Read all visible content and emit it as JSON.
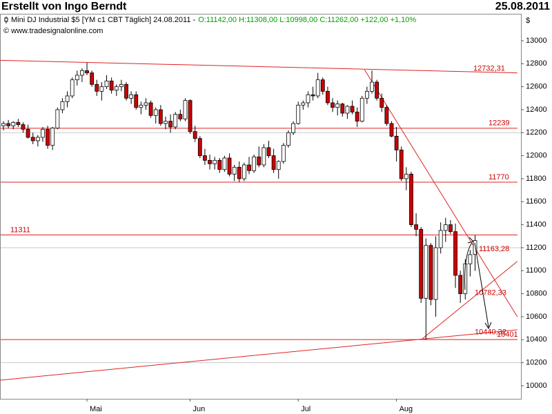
{
  "header": {
    "title": "Erstellt von Ingo Berndt",
    "date": "25.08.2011"
  },
  "chart_data": {
    "type": "candlestick",
    "instrument": "Mini DJ Industrial $5 [YM c1 CBT  Täglich] 24.08.2011 -",
    "quote": "O:11142,00 H:11308,00 L:10998,00 C:11262,00 +122,00 +1,10%",
    "source": "© www.tradesignalonline.com",
    "currency": "$",
    "up_color": "#ffffff",
    "down_color": "#cc0000",
    "line_color": "#dd2222",
    "ylim": [
      9886,
      13234
    ],
    "yticks": [
      10000,
      10200,
      10400,
      10600,
      10800,
      11000,
      11200,
      11400,
      11600,
      11800,
      12000,
      12200,
      12400,
      12600,
      12800,
      13000
    ],
    "grid_lines": [
      10200,
      11200,
      12200
    ],
    "categories": [
      null,
      null,
      null,
      null,
      null,
      null,
      null,
      null,
      null,
      null,
      null,
      null,
      null,
      null,
      null,
      null,
      null,
      "Mai",
      null,
      null,
      null,
      null,
      null,
      null,
      null,
      null,
      null,
      null,
      null,
      null,
      null,
      null,
      null,
      null,
      null,
      null,
      null,
      null,
      "Jun",
      null,
      null,
      null,
      null,
      null,
      null,
      null,
      null,
      null,
      null,
      null,
      null,
      null,
      null,
      null,
      null,
      null,
      null,
      null,
      null,
      null,
      "Jul",
      null,
      null,
      null,
      null,
      null,
      null,
      null,
      null,
      null,
      null,
      null,
      null,
      null,
      null,
      null,
      null,
      null,
      null,
      null,
      "Aug",
      null,
      null,
      null,
      null,
      null,
      null,
      null,
      null,
      null,
      null,
      null,
      null,
      null,
      null,
      null,
      null
    ],
    "ohlc": [
      [
        12260,
        12300,
        12220,
        12280
      ],
      [
        12280,
        12310,
        12240,
        12260
      ],
      [
        12260,
        12300,
        12230,
        12290
      ],
      [
        12290,
        12320,
        12250,
        12270
      ],
      [
        12270,
        12290,
        12200,
        12230
      ],
      [
        12230,
        12270,
        12150,
        12160
      ],
      [
        12160,
        12200,
        12100,
        12130
      ],
      [
        12130,
        12180,
        12080,
        12160
      ],
      [
        12160,
        12250,
        12120,
        12230
      ],
      [
        12230,
        12260,
        12060,
        12090
      ],
      [
        12090,
        12250,
        12050,
        12240
      ],
      [
        12240,
        12420,
        12230,
        12400
      ],
      [
        12400,
        12500,
        12370,
        12470
      ],
      [
        12470,
        12560,
        12420,
        12520
      ],
      [
        12520,
        12680,
        12500,
        12660
      ],
      [
        12660,
        12740,
        12610,
        12700
      ],
      [
        12700,
        12760,
        12640,
        12740
      ],
      [
        12740,
        12810,
        12700,
        12720
      ],
      [
        12720,
        12740,
        12600,
        12620
      ],
      [
        12620,
        12660,
        12520,
        12560
      ],
      [
        12560,
        12640,
        12480,
        12600
      ],
      [
        12600,
        12700,
        12580,
        12650
      ],
      [
        12650,
        12680,
        12540,
        12570
      ],
      [
        12570,
        12620,
        12520,
        12600
      ],
      [
        12600,
        12660,
        12560,
        12620
      ],
      [
        12620,
        12640,
        12480,
        12500
      ],
      [
        12500,
        12560,
        12450,
        12530
      ],
      [
        12530,
        12560,
        12400,
        12420
      ],
      [
        12420,
        12470,
        12360,
        12440
      ],
      [
        12440,
        12500,
        12400,
        12460
      ],
      [
        12460,
        12480,
        12330,
        12350
      ],
      [
        12350,
        12420,
        12280,
        12400
      ],
      [
        12400,
        12440,
        12260,
        12280
      ],
      [
        12280,
        12340,
        12230,
        12300
      ],
      [
        12300,
        12360,
        12200,
        12250
      ],
      [
        12250,
        12380,
        12230,
        12360
      ],
      [
        12360,
        12400,
        12300,
        12320
      ],
      [
        12320,
        12500,
        12300,
        12480
      ],
      [
        12480,
        12490,
        12190,
        12210
      ],
      [
        12210,
        12260,
        12120,
        12150
      ],
      [
        12150,
        12170,
        11980,
        12000
      ],
      [
        12000,
        12060,
        11920,
        11960
      ],
      [
        11960,
        12010,
        11880,
        11930
      ],
      [
        11930,
        11990,
        11880,
        11960
      ],
      [
        11960,
        11980,
        11850,
        11880
      ],
      [
        11880,
        12000,
        11860,
        11980
      ],
      [
        11980,
        12020,
        11820,
        11840
      ],
      [
        11840,
        11920,
        11780,
        11900
      ],
      [
        11900,
        11950,
        11770,
        11800
      ],
      [
        11800,
        11940,
        11780,
        11920
      ],
      [
        11920,
        11990,
        11840,
        11870
      ],
      [
        11870,
        12010,
        11850,
        11990
      ],
      [
        11990,
        12080,
        11900,
        11920
      ],
      [
        11920,
        12100,
        11900,
        12070
      ],
      [
        12070,
        12130,
        11980,
        12000
      ],
      [
        12000,
        12060,
        11850,
        11880
      ],
      [
        11880,
        11960,
        11800,
        11950
      ],
      [
        11950,
        12110,
        11930,
        12090
      ],
      [
        12090,
        12220,
        12070,
        12200
      ],
      [
        12200,
        12300,
        12180,
        12280
      ],
      [
        12280,
        12470,
        12270,
        12440
      ],
      [
        12440,
        12480,
        12400,
        12460
      ],
      [
        12460,
        12560,
        12420,
        12530
      ],
      [
        12530,
        12600,
        12480,
        12520
      ],
      [
        12520,
        12720,
        12500,
        12660
      ],
      [
        12660,
        12680,
        12530,
        12560
      ],
      [
        12560,
        12600,
        12440,
        12460
      ],
      [
        12460,
        12500,
        12380,
        12420
      ],
      [
        12420,
        12480,
        12350,
        12450
      ],
      [
        12450,
        12460,
        12340,
        12370
      ],
      [
        12370,
        12440,
        12320,
        12430
      ],
      [
        12430,
        12480,
        12360,
        12380
      ],
      [
        12380,
        12420,
        12250,
        12300
      ],
      [
        12300,
        12520,
        12290,
        12500
      ],
      [
        12500,
        12600,
        12450,
        12560
      ],
      [
        12560,
        12740,
        12540,
        12640
      ],
      [
        12640,
        12660,
        12480,
        12500
      ],
      [
        12500,
        12540,
        12380,
        12420
      ],
      [
        12420,
        12440,
        12260,
        12280
      ],
      [
        12280,
        12300,
        12160,
        12170
      ],
      [
        12170,
        12250,
        11950,
        12050
      ],
      [
        12050,
        12080,
        11780,
        11800
      ],
      [
        11800,
        11900,
        11700,
        11840
      ],
      [
        11840,
        11860,
        11380,
        11400
      ],
      [
        11400,
        11500,
        11300,
        11360
      ],
      [
        11360,
        11380,
        10720,
        10760
      ],
      [
        10760,
        11280,
        10400,
        11220
      ],
      [
        11220,
        11240,
        10700,
        10750
      ],
      [
        10750,
        11300,
        10600,
        11200
      ],
      [
        11200,
        11420,
        11150,
        11350
      ],
      [
        11350,
        11460,
        11250,
        11400
      ],
      [
        11400,
        11440,
        11320,
        11340
      ],
      [
        11340,
        11410,
        10850,
        10960
      ],
      [
        10960,
        11000,
        10720,
        10800
      ],
      [
        10800,
        11100,
        10750,
        11060
      ],
      [
        11060,
        11180,
        10950,
        11140
      ],
      [
        11142,
        11308,
        10998,
        11262
      ]
    ],
    "levels": [
      12239,
      11770,
      11311,
      10401
    ],
    "trendlines": [
      {
        "label": {
          "value": 12732.31,
          "label": "12732,31"
        },
        "from": [
          -0.7,
          12830
        ],
        "to": [
          104.6,
          12720
        ]
      },
      {
        "label": {
          "value": 11163.28,
          "label": "11163,28"
        },
        "from": [
          73.5,
          12748
        ],
        "to": [
          104.6,
          10600
        ]
      },
      {
        "label": {
          "value": 10782.33,
          "label": "10782,33"
        },
        "from": [
          85.25,
          10408
        ],
        "to": [
          104.6,
          11081
        ]
      },
      {
        "label": {
          "value": 10440.32,
          "label": "10440,32"
        },
        "from": [
          -0.7,
          10048
        ],
        "to": [
          104.6,
          10486
        ]
      }
    ]
  }
}
